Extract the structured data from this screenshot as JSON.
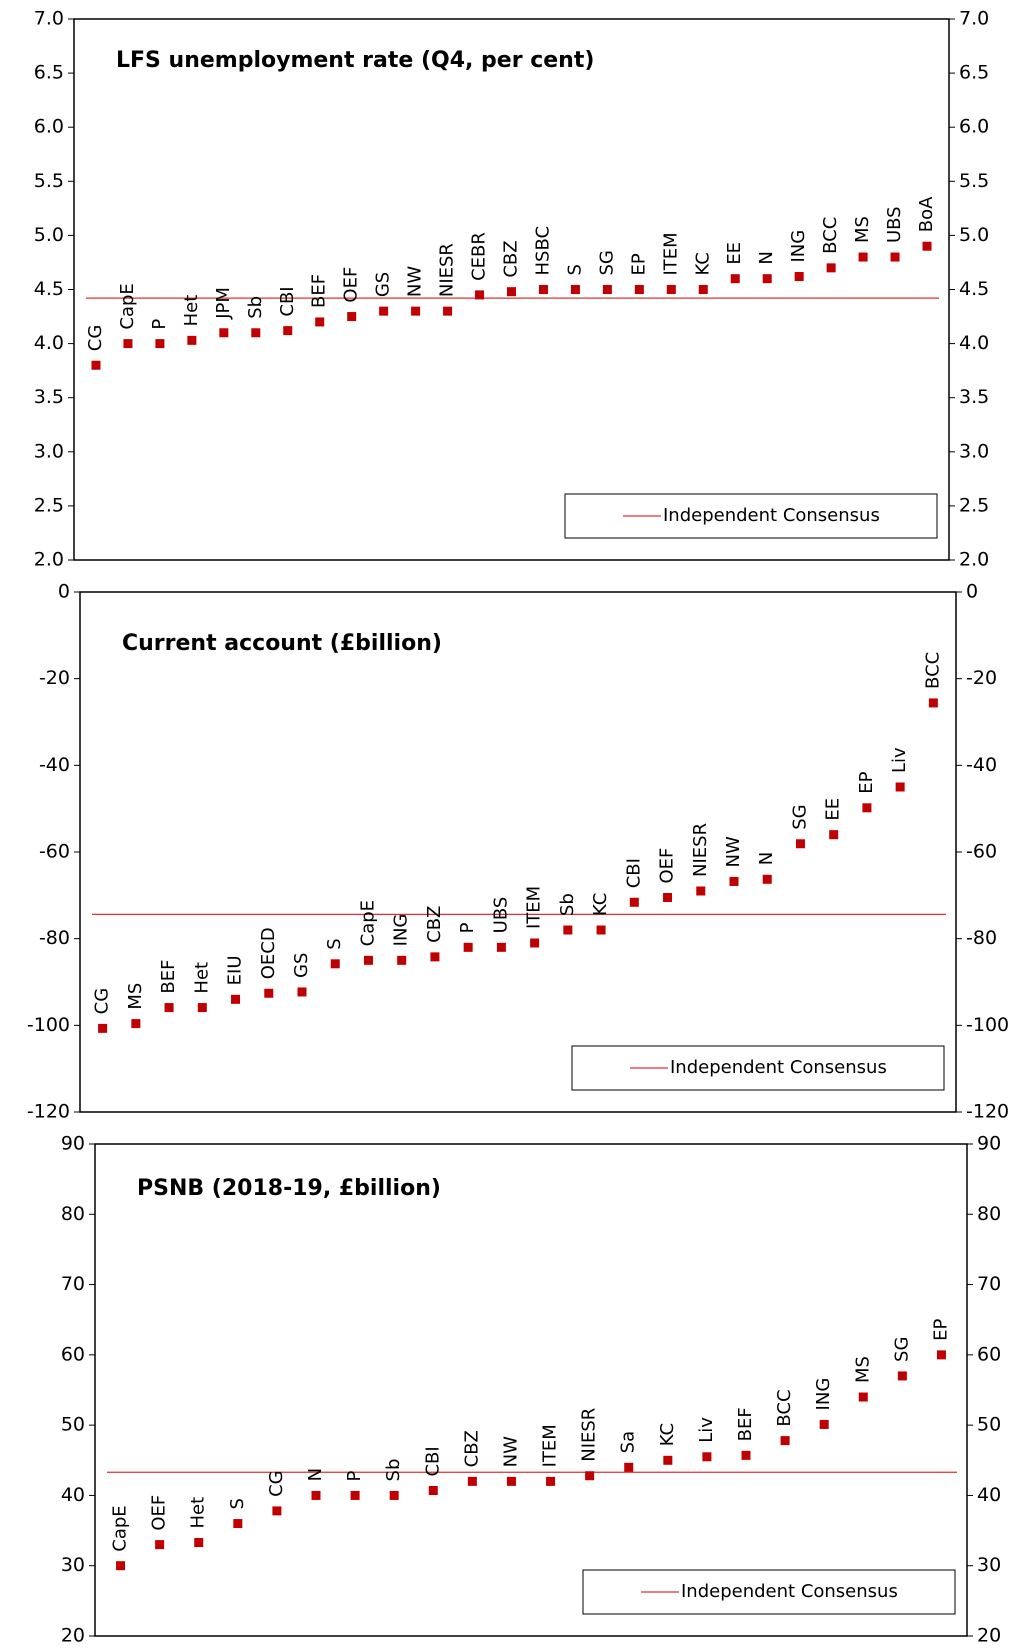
{
  "chart_data": [
    {
      "type": "scatter",
      "title": "LFS unemployment rate (Q4, per cent)",
      "color": "#c00000",
      "categories": [
        "CG",
        "CapE",
        "P",
        "Het",
        "JPM",
        "Sb",
        "CBI",
        "BEF",
        "OEF",
        "GS",
        "NW",
        "NIESR",
        "CEBR",
        "CBZ",
        "HSBC",
        "S",
        "SG",
        "EP",
        "ITEM",
        "KC",
        "EE",
        "N",
        "ING",
        "BCC",
        "MS",
        "UBS",
        "BoA"
      ],
      "values": [
        3.8,
        4.0,
        4.0,
        4.03,
        4.1,
        4.1,
        4.12,
        4.2,
        4.25,
        4.3,
        4.3,
        4.3,
        4.45,
        4.48,
        4.5,
        4.5,
        4.5,
        4.5,
        4.5,
        4.5,
        4.6,
        4.6,
        4.62,
        4.7,
        4.8,
        4.8,
        4.9
      ],
      "consensus": {
        "name": "Independent Consensus",
        "value": 4.42,
        "color": "#e03030"
      },
      "ylim": [
        2.0,
        7.0
      ],
      "yticks": [
        {
          "value": 2,
          "label": "2.0"
        },
        {
          "value": 2.5,
          "label": "2.5"
        },
        {
          "value": 3,
          "label": "3.0"
        },
        {
          "value": 3.5,
          "label": "3.5"
        },
        {
          "value": 4,
          "label": "4.0"
        },
        {
          "value": 4.5,
          "label": "4.5"
        },
        {
          "value": 5,
          "label": "5.0"
        },
        {
          "value": 5.5,
          "label": "5.5"
        },
        {
          "value": 6,
          "label": "6.0"
        },
        {
          "value": 6.5,
          "label": "6.5"
        },
        {
          "value": 7,
          "label": "7.0"
        }
      ]
    },
    {
      "type": "scatter",
      "title": "Current account (£billion)",
      "color": "#c00000",
      "categories": [
        "CG",
        "MS",
        "BEF",
        "Het",
        "EIU",
        "OECD",
        "GS",
        "S",
        "CapE",
        "ING",
        "CBZ",
        "P",
        "UBS",
        "ITEM",
        "Sb",
        "KC",
        "CBI",
        "OEF",
        "NIESR",
        "NW",
        "N",
        "SG",
        "EE",
        "EP",
        "Liv",
        "BCC"
      ],
      "values": [
        -100.7,
        -99.6,
        -95.9,
        -95.9,
        -94,
        -92.6,
        -92.3,
        -85.8,
        -85,
        -85,
        -84.2,
        -82,
        -82,
        -81,
        -78,
        -78,
        -71.6,
        -70.5,
        -69,
        -66.8,
        -66.3,
        -58.1,
        -56,
        -49.8,
        -45,
        -25.6
      ],
      "consensus": {
        "name": "Independent Consensus",
        "value": -74.4,
        "color": "#e03030"
      },
      "ylim": [
        -120,
        0
      ],
      "yticks": [
        -120,
        -100,
        -80,
        -60,
        -40,
        -20,
        0
      ]
    },
    {
      "type": "scatter",
      "title": "PSNB (2018-19, £billion)",
      "color": "#c00000",
      "categories": [
        "CapE",
        "OEF",
        "Het",
        "S",
        "CG",
        "N",
        "P",
        "Sb",
        "CBI",
        "CBZ",
        "NW",
        "ITEM",
        "NIESR",
        "Sa",
        "KC",
        "Liv",
        "BEF",
        "BCC",
        "ING",
        "MS",
        "SG",
        "EP"
      ],
      "values": [
        30,
        33,
        33.3,
        36,
        37.8,
        40,
        40,
        40,
        40.7,
        42,
        42,
        42,
        42.8,
        44,
        45,
        45.5,
        45.7,
        47.8,
        50.1,
        54,
        57,
        60
      ],
      "consensus": {
        "name": "Independent Consensus",
        "value": 43.3,
        "color": "#e03030"
      },
      "ylim": [
        20,
        90
      ],
      "yticks": [
        20,
        30,
        40,
        50,
        60,
        70,
        80,
        90
      ]
    }
  ]
}
